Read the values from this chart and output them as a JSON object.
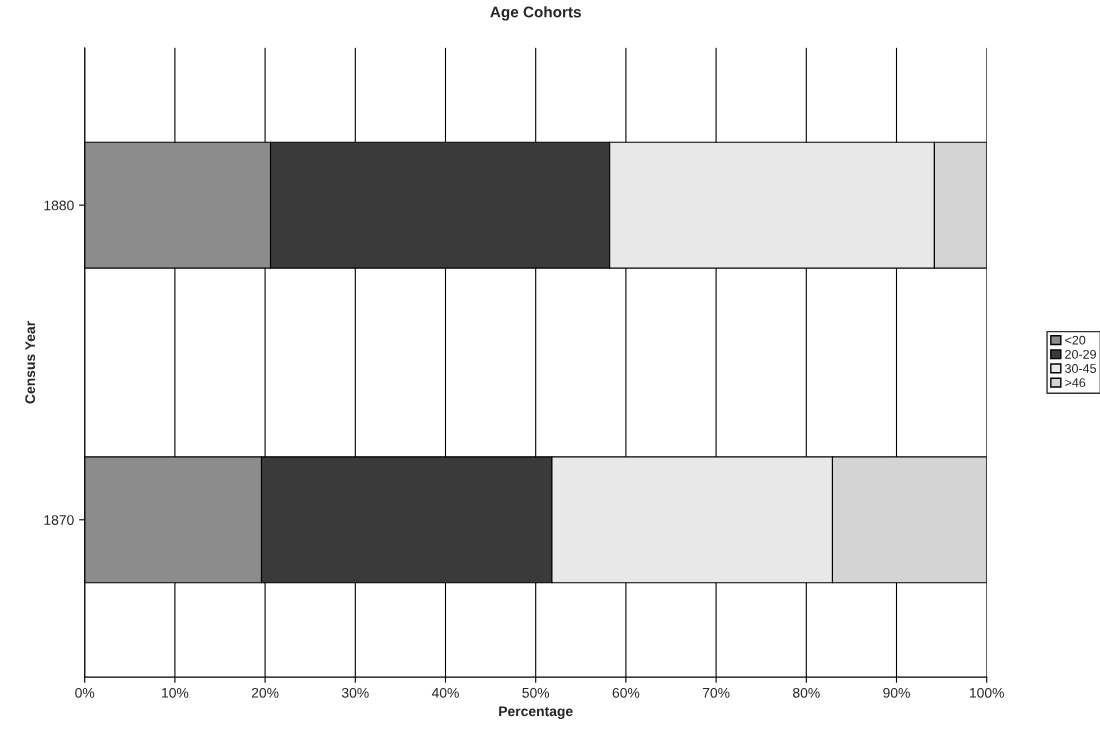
{
  "chart_data": {
    "type": "bar",
    "orientation": "horizontal",
    "stacked": true,
    "title": "Age Cohorts",
    "xlabel": "Percentage",
    "ylabel": "Census Year",
    "categories": [
      "1880",
      "1870"
    ],
    "series": [
      {
        "name": "<20",
        "color": "#8c8c8c",
        "values": [
          20.6,
          19.6
        ]
      },
      {
        "name": "20-29",
        "color": "#3a3a3a",
        "values": [
          37.6,
          32.2
        ]
      },
      {
        "name": "30-45",
        "color": "#e8e8e8",
        "values": [
          36.0,
          31.1
        ]
      },
      {
        "name": ">46",
        "color": "#d4d4d4",
        "values": [
          5.8,
          17.1
        ]
      }
    ],
    "xlim": [
      0,
      100
    ],
    "xticks": [
      {
        "value": 0,
        "label": "0%"
      },
      {
        "value": 10,
        "label": "10%"
      },
      {
        "value": 20,
        "label": "20%"
      },
      {
        "value": 30,
        "label": "30%"
      },
      {
        "value": 40,
        "label": "40%"
      },
      {
        "value": 50,
        "label": "50%"
      },
      {
        "value": 60,
        "label": "60%"
      },
      {
        "value": 70,
        "label": "70%"
      },
      {
        "value": 80,
        "label": "80%"
      },
      {
        "value": 90,
        "label": "90%"
      },
      {
        "value": 100,
        "label": "100%"
      }
    ],
    "grid": "x",
    "legend": "right"
  }
}
